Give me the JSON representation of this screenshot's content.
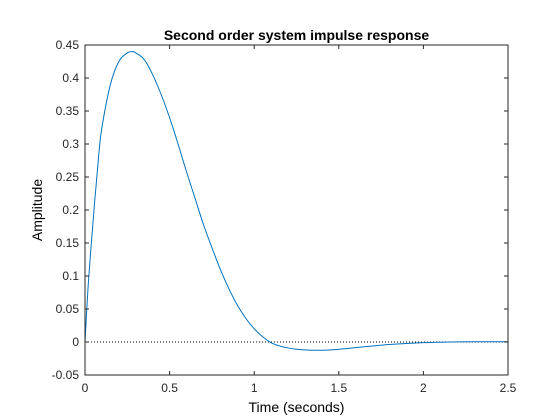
{
  "chart_data": {
    "type": "line",
    "title": "Second order system impulse response",
    "xlabel": "Time (seconds)",
    "ylabel": "Amplitude",
    "xlim": [
      0,
      2.5
    ],
    "ylim": [
      -0.05,
      0.45
    ],
    "x_ticks": [
      "0",
      "0.5",
      "1",
      "1.5",
      "2",
      "2.5"
    ],
    "y_ticks": [
      "-0.05",
      "0",
      "0.05",
      "0.1",
      "0.15",
      "0.2",
      "0.25",
      "0.3",
      "0.35",
      "0.4",
      "0.45"
    ],
    "grid": false,
    "reference_line": {
      "y": 0,
      "style": "dotted"
    },
    "series": [
      {
        "color": "#0072BD",
        "x": [
          0,
          0.02,
          0.05,
          0.08,
          0.1,
          0.15,
          0.2,
          0.25,
          0.28,
          0.3,
          0.35,
          0.4,
          0.45,
          0.5,
          0.55,
          0.6,
          0.65,
          0.7,
          0.75,
          0.8,
          0.85,
          0.9,
          0.95,
          1.0,
          1.05,
          1.1,
          1.15,
          1.2,
          1.25,
          1.3,
          1.35,
          1.4,
          1.45,
          1.5,
          1.55,
          1.6,
          1.7,
          1.8,
          1.9,
          2.0,
          2.1,
          2.2,
          2.3,
          2.4,
          2.5
        ],
        "y": [
          0,
          0.09,
          0.19,
          0.28,
          0.325,
          0.39,
          0.425,
          0.438,
          0.44,
          0.438,
          0.428,
          0.405,
          0.375,
          0.34,
          0.3,
          0.258,
          0.218,
          0.178,
          0.143,
          0.11,
          0.081,
          0.056,
          0.036,
          0.02,
          0.008,
          -0.001,
          -0.006,
          -0.009,
          -0.011,
          -0.012,
          -0.0125,
          -0.0125,
          -0.012,
          -0.011,
          -0.0098,
          -0.0085,
          -0.006,
          -0.0038,
          -0.0022,
          -0.001,
          -0.0003,
          0.0002,
          0.0004,
          0.0004,
          0.0003
        ]
      }
    ]
  }
}
